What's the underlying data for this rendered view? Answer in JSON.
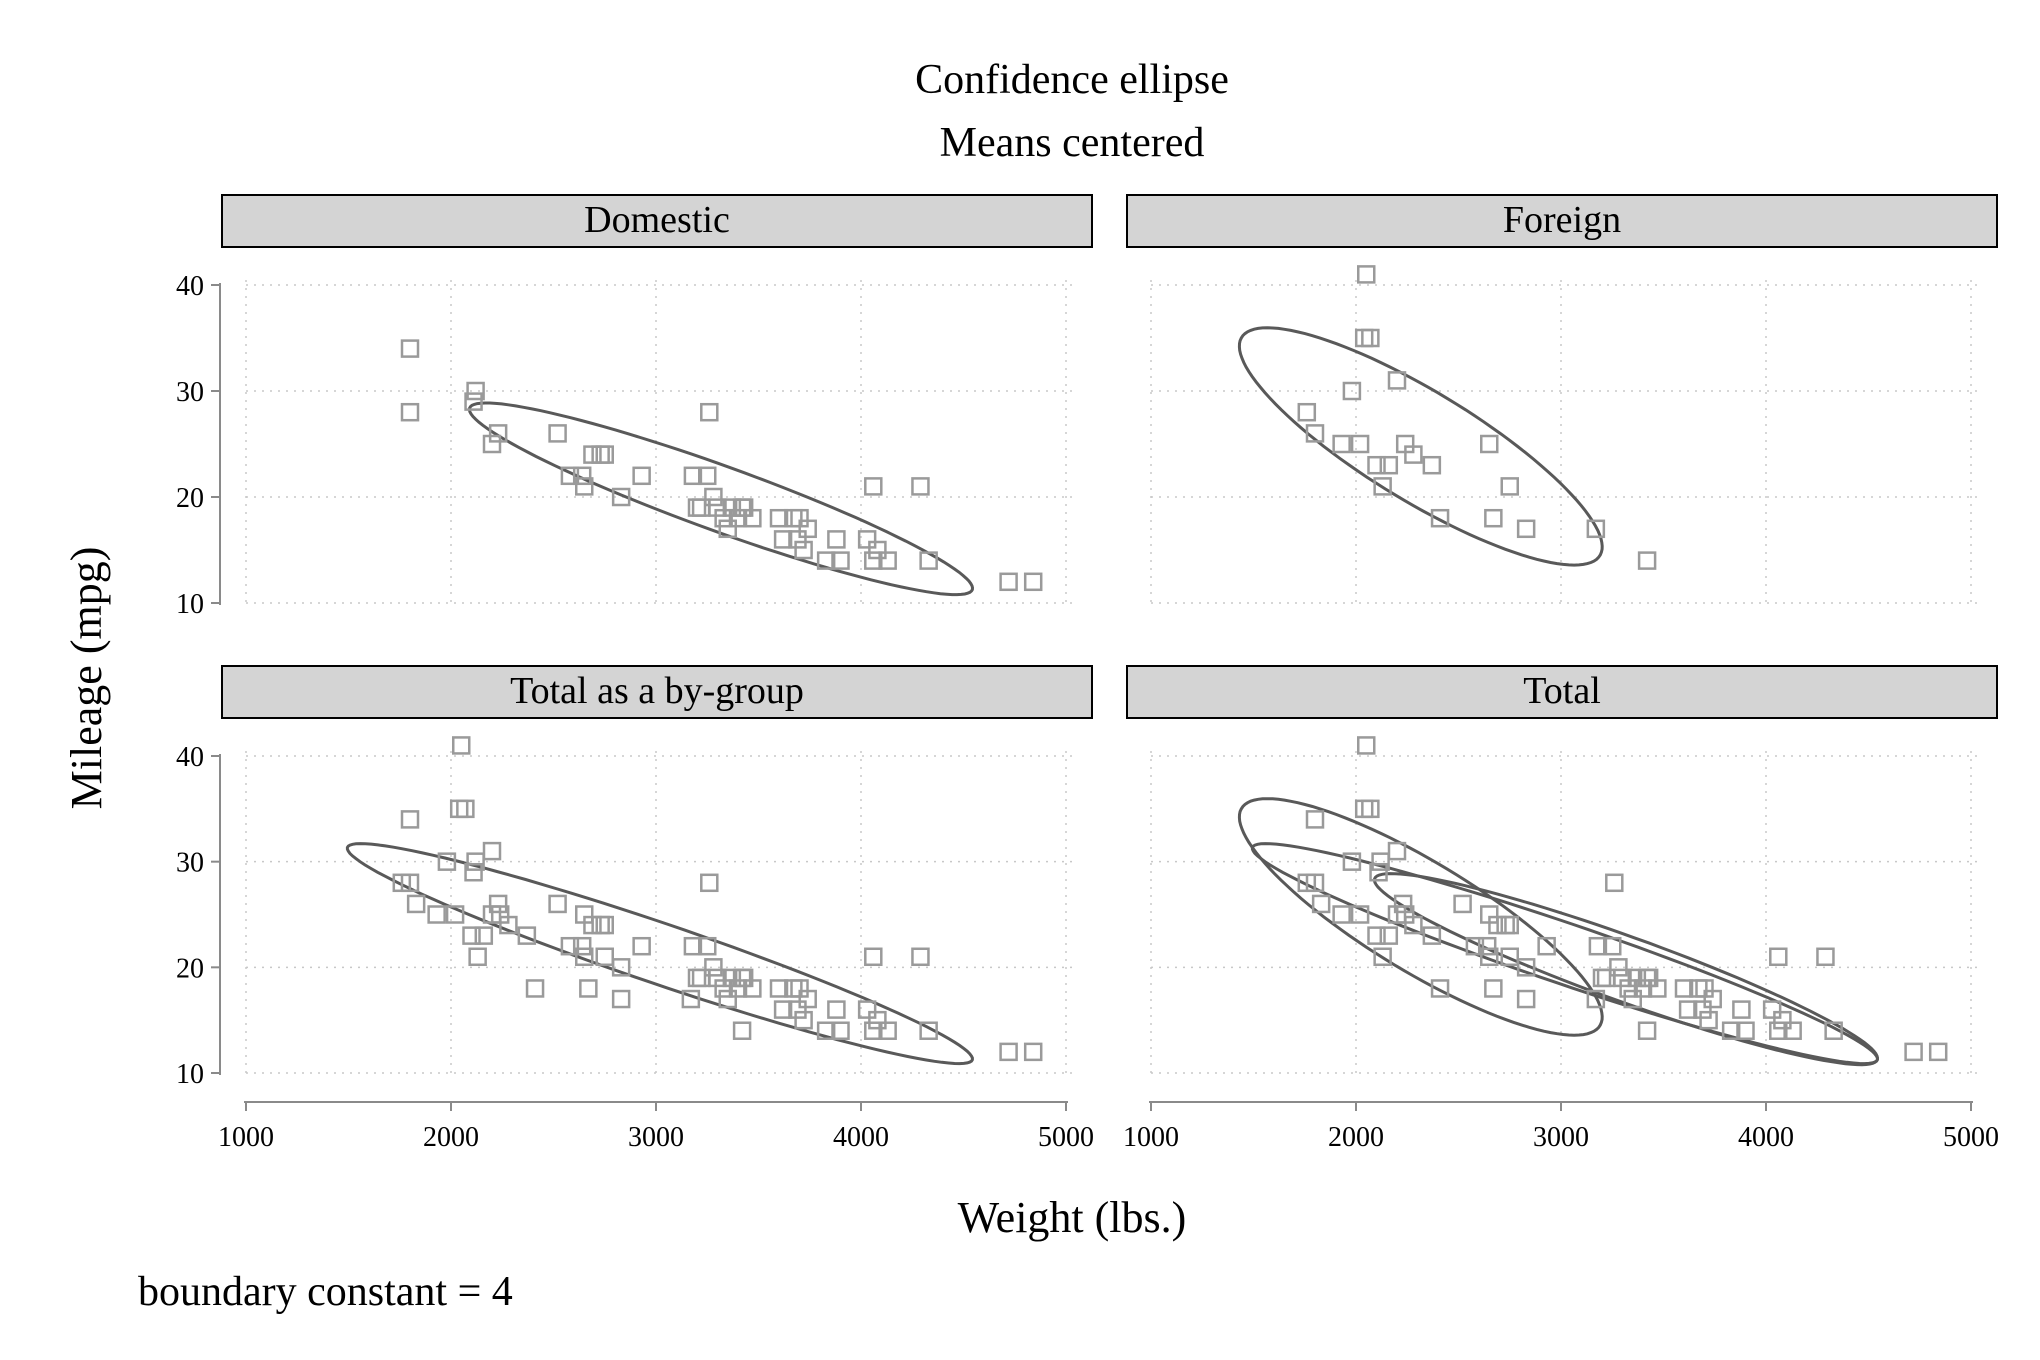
{
  "title": "Confidence ellipse",
  "subtitle": "Means centered",
  "xlabel": "Weight (lbs.)",
  "ylabel": "Mileage (mpg)",
  "note": "boundary constant = 4",
  "colors": {
    "marker": "#9a9a9a",
    "ellipse": "#595959",
    "strip_fill": "#d4d4d4",
    "grid": "#c8c8c8",
    "axis": "#8a8a8a"
  },
  "chart_data": [
    {
      "type": "scatter",
      "panel": "Domestic",
      "x_ticks": [
        1000,
        2000,
        3000,
        4000,
        5000
      ],
      "y_ticks": [
        10,
        20,
        30,
        40
      ],
      "xlim": [
        1000,
        5000
      ],
      "ylim": [
        10,
        40
      ],
      "grid": true,
      "marker": "hollow-square",
      "points": [
        [
          1800,
          34
        ],
        [
          1800,
          28
        ],
        [
          2110,
          29
        ],
        [
          2120,
          30
        ],
        [
          2200,
          25
        ],
        [
          2230,
          26
        ],
        [
          2520,
          26
        ],
        [
          2580,
          22
        ],
        [
          2640,
          22
        ],
        [
          2650,
          21
        ],
        [
          2690,
          24
        ],
        [
          2730,
          24
        ],
        [
          2750,
          24
        ],
        [
          2830,
          20
        ],
        [
          2930,
          22
        ],
        [
          3180,
          22
        ],
        [
          3200,
          19
        ],
        [
          3220,
          19
        ],
        [
          3250,
          22
        ],
        [
          3260,
          28
        ],
        [
          3280,
          20
        ],
        [
          3300,
          19
        ],
        [
          3330,
          18
        ],
        [
          3350,
          17
        ],
        [
          3370,
          19
        ],
        [
          3400,
          18
        ],
        [
          3420,
          19
        ],
        [
          3430,
          19
        ],
        [
          3470,
          18
        ],
        [
          3600,
          18
        ],
        [
          3620,
          16
        ],
        [
          3670,
          18
        ],
        [
          3690,
          16
        ],
        [
          3700,
          18
        ],
        [
          3720,
          15
        ],
        [
          3740,
          17
        ],
        [
          3830,
          14
        ],
        [
          3880,
          16
        ],
        [
          3900,
          14
        ],
        [
          4030,
          16
        ],
        [
          4060,
          21
        ],
        [
          4060,
          14
        ],
        [
          4080,
          15
        ],
        [
          4130,
          14
        ],
        [
          4290,
          21
        ],
        [
          4330,
          14
        ],
        [
          4720,
          12
        ],
        [
          4840,
          12
        ]
      ],
      "ellipses": [
        {
          "center": [
            3317,
            19.83
          ],
          "semi_axes_tip": [
            [
              4539,
              11.13
            ],
            [
              2095,
              28.53
            ]
          ],
          "minor_tip": [
            3204,
            17.37
          ]
        }
      ]
    },
    {
      "type": "scatter",
      "panel": "Foreign",
      "x_ticks": [
        1000,
        2000,
        3000,
        4000,
        5000
      ],
      "y_ticks": [
        10,
        20,
        30,
        40
      ],
      "xlim": [
        1000,
        5000
      ],
      "ylim": [
        10,
        40
      ],
      "grid": true,
      "marker": "hollow-square",
      "points": [
        [
          1760,
          28
        ],
        [
          1800,
          26
        ],
        [
          1930,
          25
        ],
        [
          1980,
          30
        ],
        [
          2020,
          25
        ],
        [
          2040,
          35
        ],
        [
          2050,
          41
        ],
        [
          2070,
          35
        ],
        [
          2100,
          23
        ],
        [
          2130,
          21
        ],
        [
          2160,
          23
        ],
        [
          2200,
          31
        ],
        [
          2240,
          25
        ],
        [
          2280,
          24
        ],
        [
          2370,
          23
        ],
        [
          2410,
          18
        ],
        [
          2650,
          25
        ],
        [
          2670,
          18
        ],
        [
          2750,
          21
        ],
        [
          2830,
          17
        ],
        [
          3170,
          17
        ],
        [
          3420,
          14
        ]
      ],
      "ellipses": [
        {
          "center": [
            2316,
            24.77
          ],
          "semi_axes_tip": [
            [
              3146,
              13.82
            ],
            [
              1486,
              35.72
            ]
          ],
          "minor_tip": [
            2009,
            22.45
          ]
        }
      ]
    },
    {
      "type": "scatter",
      "panel": "Total as a by-group",
      "x_ticks": [
        1000,
        2000,
        3000,
        4000,
        5000
      ],
      "y_ticks": [
        10,
        20,
        30,
        40
      ],
      "xlim": [
        1000,
        5000
      ],
      "ylim": [
        10,
        40
      ],
      "grid": true,
      "marker": "hollow-square",
      "points": [
        [
          1760,
          28
        ],
        [
          1800,
          34
        ],
        [
          1800,
          28
        ],
        [
          1830,
          26
        ],
        [
          1930,
          25
        ],
        [
          1980,
          30
        ],
        [
          2020,
          25
        ],
        [
          2040,
          35
        ],
        [
          2050,
          41
        ],
        [
          2070,
          35
        ],
        [
          2100,
          23
        ],
        [
          2110,
          29
        ],
        [
          2120,
          30
        ],
        [
          2130,
          21
        ],
        [
          2160,
          23
        ],
        [
          2200,
          31
        ],
        [
          2200,
          25
        ],
        [
          2230,
          26
        ],
        [
          2240,
          25
        ],
        [
          2280,
          24
        ],
        [
          2370,
          23
        ],
        [
          2410,
          18
        ],
        [
          2520,
          26
        ],
        [
          2580,
          22
        ],
        [
          2640,
          22
        ],
        [
          2650,
          21
        ],
        [
          2650,
          25
        ],
        [
          2670,
          18
        ],
        [
          2690,
          24
        ],
        [
          2730,
          24
        ],
        [
          2750,
          21
        ],
        [
          2750,
          24
        ],
        [
          2830,
          20
        ],
        [
          2830,
          17
        ],
        [
          2930,
          22
        ],
        [
          3170,
          17
        ],
        [
          3180,
          22
        ],
        [
          3200,
          19
        ],
        [
          3220,
          19
        ],
        [
          3250,
          22
        ],
        [
          3260,
          28
        ],
        [
          3280,
          20
        ],
        [
          3300,
          19
        ],
        [
          3330,
          18
        ],
        [
          3350,
          17
        ],
        [
          3370,
          19
        ],
        [
          3400,
          18
        ],
        [
          3420,
          14
        ],
        [
          3420,
          19
        ],
        [
          3430,
          19
        ],
        [
          3470,
          18
        ],
        [
          3600,
          18
        ],
        [
          3620,
          16
        ],
        [
          3670,
          18
        ],
        [
          3690,
          16
        ],
        [
          3700,
          18
        ],
        [
          3720,
          15
        ],
        [
          3740,
          17
        ],
        [
          3830,
          14
        ],
        [
          3880,
          16
        ],
        [
          3900,
          14
        ],
        [
          4030,
          16
        ],
        [
          4060,
          21
        ],
        [
          4060,
          14
        ],
        [
          4080,
          15
        ],
        [
          4130,
          14
        ],
        [
          4290,
          21
        ],
        [
          4330,
          14
        ],
        [
          4720,
          12
        ],
        [
          4840,
          12
        ]
      ],
      "ellipses": [
        {
          "center": [
            3019,
            21.3
          ],
          "semi_axes_tip": [
            [
              4539,
              11.13
            ],
            [
              1499,
              31.47
            ]
          ],
          "minor_tip": [
            2898,
            19.08
          ]
        }
      ]
    },
    {
      "type": "scatter",
      "panel": "Total",
      "x_ticks": [
        1000,
        2000,
        3000,
        4000,
        5000
      ],
      "y_ticks": [
        10,
        20,
        30,
        40
      ],
      "xlim": [
        1000,
        5000
      ],
      "ylim": [
        10,
        40
      ],
      "grid": true,
      "marker": "hollow-square",
      "points": [
        [
          1760,
          28
        ],
        [
          1800,
          34
        ],
        [
          1800,
          28
        ],
        [
          1830,
          26
        ],
        [
          1930,
          25
        ],
        [
          1980,
          30
        ],
        [
          2020,
          25
        ],
        [
          2040,
          35
        ],
        [
          2050,
          41
        ],
        [
          2070,
          35
        ],
        [
          2100,
          23
        ],
        [
          2110,
          29
        ],
        [
          2120,
          30
        ],
        [
          2130,
          21
        ],
        [
          2160,
          23
        ],
        [
          2200,
          31
        ],
        [
          2200,
          25
        ],
        [
          2230,
          26
        ],
        [
          2240,
          25
        ],
        [
          2280,
          24
        ],
        [
          2370,
          23
        ],
        [
          2410,
          18
        ],
        [
          2520,
          26
        ],
        [
          2580,
          22
        ],
        [
          2640,
          22
        ],
        [
          2650,
          21
        ],
        [
          2650,
          25
        ],
        [
          2670,
          18
        ],
        [
          2690,
          24
        ],
        [
          2730,
          24
        ],
        [
          2750,
          21
        ],
        [
          2750,
          24
        ],
        [
          2830,
          20
        ],
        [
          2830,
          17
        ],
        [
          2930,
          22
        ],
        [
          3170,
          17
        ],
        [
          3180,
          22
        ],
        [
          3200,
          19
        ],
        [
          3220,
          19
        ],
        [
          3250,
          22
        ],
        [
          3260,
          28
        ],
        [
          3280,
          20
        ],
        [
          3300,
          19
        ],
        [
          3330,
          18
        ],
        [
          3350,
          17
        ],
        [
          3370,
          19
        ],
        [
          3400,
          18
        ],
        [
          3420,
          14
        ],
        [
          3420,
          19
        ],
        [
          3430,
          19
        ],
        [
          3470,
          18
        ],
        [
          3600,
          18
        ],
        [
          3620,
          16
        ],
        [
          3670,
          18
        ],
        [
          3690,
          16
        ],
        [
          3700,
          18
        ],
        [
          3720,
          15
        ],
        [
          3740,
          17
        ],
        [
          3830,
          14
        ],
        [
          3880,
          16
        ],
        [
          3900,
          14
        ],
        [
          4030,
          16
        ],
        [
          4060,
          21
        ],
        [
          4060,
          14
        ],
        [
          4080,
          15
        ],
        [
          4130,
          14
        ],
        [
          4290,
          21
        ],
        [
          4330,
          14
        ],
        [
          4720,
          12
        ],
        [
          4840,
          12
        ]
      ],
      "ellipses": [
        {
          "center": [
            3019,
            21.3
          ],
          "semi_axes_tip": [
            [
              4539,
              11.13
            ],
            [
              1499,
              31.47
            ]
          ],
          "minor_tip": [
            2898,
            19.08
          ]
        },
        {
          "center": [
            2316,
            24.77
          ],
          "semi_axes_tip": [
            [
              3146,
              13.82
            ],
            [
              1486,
              35.72
            ]
          ],
          "minor_tip": [
            2009,
            22.45
          ]
        },
        {
          "center": [
            3317,
            19.83
          ],
          "semi_axes_tip": [
            [
              4539,
              11.13
            ],
            [
              2095,
              28.53
            ]
          ],
          "minor_tip": [
            3204,
            17.37
          ]
        }
      ]
    }
  ]
}
